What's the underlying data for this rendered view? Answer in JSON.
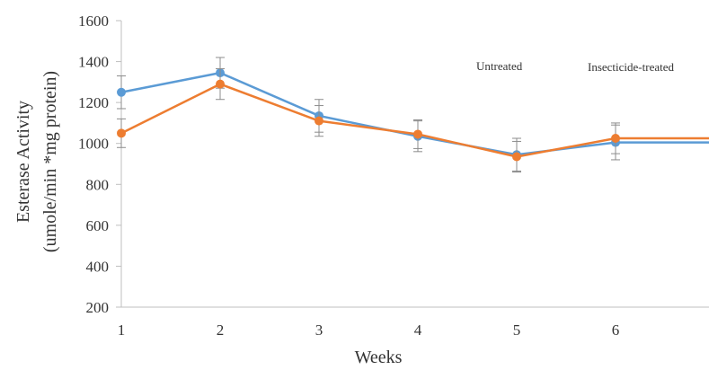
{
  "chart_data": {
    "type": "line",
    "title": "",
    "xlabel": "Weeks",
    "ylabel_lines": [
      "Esterase Activity",
      "(umole/min *mg protein)"
    ],
    "categories": [
      "1",
      "2",
      "3",
      "4",
      "5",
      "6"
    ],
    "ylim": [
      200,
      1600
    ],
    "yticks": [
      200,
      400,
      600,
      800,
      1000,
      1200,
      1400,
      1600
    ],
    "grid": false,
    "series": [
      {
        "name": "Untreated",
        "color": "#5B9BD5",
        "values": [
          1250,
          1345,
          1135,
          1035,
          945,
          1005
        ],
        "errors": [
          80,
          75,
          80,
          75,
          80,
          85
        ],
        "extension_value": 1005
      },
      {
        "name": "Insecticide-treated",
        "color": "#ED7D31",
        "values": [
          1050,
          1290,
          1110,
          1045,
          935,
          1025
        ],
        "errors": [
          70,
          75,
          75,
          70,
          75,
          75
        ],
        "extension_value": 1025
      }
    ]
  }
}
